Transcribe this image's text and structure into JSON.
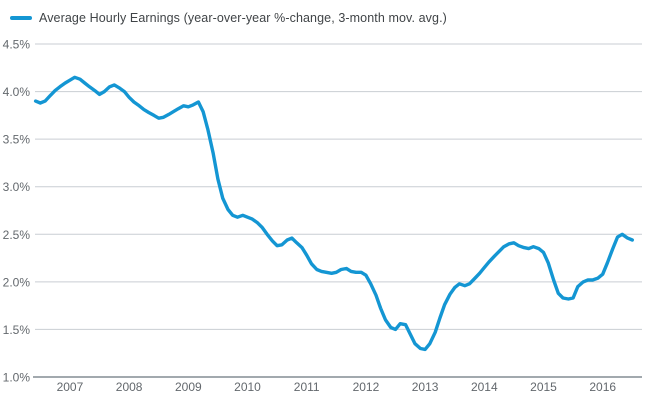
{
  "legend": {
    "label": "Average Hourly Earnings (year-over-year %-change, 3-month mov. avg.)"
  },
  "colors": {
    "line": "#1496d3",
    "grid": "#c9ced3",
    "axis": "#a2a9ae",
    "tick_text": "#63686d",
    "legend_text": "#404447",
    "background": "#ffffff"
  },
  "chart_data": {
    "type": "line",
    "title": "Average Hourly Earnings (year-over-year %-change, 3-month mov. avg.)",
    "xlabel": "",
    "ylabel": "",
    "grid": "horizontal-only",
    "legend_position": "top-left",
    "x_tick_labels": [
      "2007",
      "2008",
      "2009",
      "2010",
      "2011",
      "2012",
      "2013",
      "2014",
      "2015",
      "2016"
    ],
    "x_tick_values": [
      2007,
      2008,
      2009,
      2010,
      2011,
      2012,
      2013,
      2014,
      2015,
      2016
    ],
    "y_tick_labels": [
      "4.5%",
      "4.0%",
      "3.5%",
      "3.0%",
      "2.5%",
      "2.0%",
      "1.5%",
      "1.0%"
    ],
    "y_tick_values": [
      4.5,
      4.0,
      3.5,
      3.0,
      2.5,
      2.0,
      1.5,
      1.0
    ],
    "x_range": [
      2006.41,
      2016.63
    ],
    "y_range": [
      1.0,
      4.5
    ],
    "series": [
      {
        "name": "Average Hourly Earnings (year-over-year %-change, 3-month mov. avg.)",
        "units": "percent",
        "points": [
          [
            2006.42,
            3.9
          ],
          [
            2006.5,
            3.88
          ],
          [
            2006.58,
            3.9
          ],
          [
            2006.67,
            3.96
          ],
          [
            2006.75,
            4.01
          ],
          [
            2006.83,
            4.05
          ],
          [
            2006.92,
            4.09
          ],
          [
            2007.0,
            4.12
          ],
          [
            2007.08,
            4.15
          ],
          [
            2007.17,
            4.13
          ],
          [
            2007.25,
            4.09
          ],
          [
            2007.33,
            4.05
          ],
          [
            2007.42,
            4.01
          ],
          [
            2007.5,
            3.97
          ],
          [
            2007.58,
            4.0
          ],
          [
            2007.67,
            4.05
          ],
          [
            2007.75,
            4.07
          ],
          [
            2007.83,
            4.04
          ],
          [
            2007.92,
            4.0
          ],
          [
            2008.0,
            3.94
          ],
          [
            2008.08,
            3.89
          ],
          [
            2008.17,
            3.85
          ],
          [
            2008.25,
            3.81
          ],
          [
            2008.33,
            3.78
          ],
          [
            2008.42,
            3.75
          ],
          [
            2008.5,
            3.72
          ],
          [
            2008.58,
            3.73
          ],
          [
            2008.67,
            3.76
          ],
          [
            2008.75,
            3.79
          ],
          [
            2008.83,
            3.82
          ],
          [
            2008.92,
            3.85
          ],
          [
            2009.0,
            3.84
          ],
          [
            2009.08,
            3.86
          ],
          [
            2009.17,
            3.89
          ],
          [
            2009.25,
            3.79
          ],
          [
            2009.33,
            3.6
          ],
          [
            2009.42,
            3.35
          ],
          [
            2009.5,
            3.08
          ],
          [
            2009.58,
            2.88
          ],
          [
            2009.67,
            2.76
          ],
          [
            2009.75,
            2.7
          ],
          [
            2009.83,
            2.68
          ],
          [
            2009.92,
            2.7
          ],
          [
            2010.0,
            2.68
          ],
          [
            2010.08,
            2.66
          ],
          [
            2010.17,
            2.62
          ],
          [
            2010.25,
            2.57
          ],
          [
            2010.33,
            2.5
          ],
          [
            2010.42,
            2.43
          ],
          [
            2010.5,
            2.38
          ],
          [
            2010.58,
            2.39
          ],
          [
            2010.67,
            2.44
          ],
          [
            2010.75,
            2.46
          ],
          [
            2010.83,
            2.41
          ],
          [
            2010.92,
            2.36
          ],
          [
            2011.0,
            2.28
          ],
          [
            2011.08,
            2.19
          ],
          [
            2011.17,
            2.13
          ],
          [
            2011.25,
            2.11
          ],
          [
            2011.33,
            2.1
          ],
          [
            2011.42,
            2.09
          ],
          [
            2011.5,
            2.1
          ],
          [
            2011.58,
            2.13
          ],
          [
            2011.67,
            2.14
          ],
          [
            2011.75,
            2.11
          ],
          [
            2011.83,
            2.1
          ],
          [
            2011.92,
            2.1
          ],
          [
            2012.0,
            2.07
          ],
          [
            2012.08,
            1.98
          ],
          [
            2012.17,
            1.86
          ],
          [
            2012.25,
            1.72
          ],
          [
            2012.33,
            1.6
          ],
          [
            2012.42,
            1.52
          ],
          [
            2012.5,
            1.5
          ],
          [
            2012.58,
            1.56
          ],
          [
            2012.67,
            1.55
          ],
          [
            2012.75,
            1.45
          ],
          [
            2012.83,
            1.35
          ],
          [
            2012.92,
            1.3
          ],
          [
            2013.0,
            1.29
          ],
          [
            2013.08,
            1.35
          ],
          [
            2013.17,
            1.47
          ],
          [
            2013.25,
            1.62
          ],
          [
            2013.33,
            1.76
          ],
          [
            2013.42,
            1.87
          ],
          [
            2013.5,
            1.94
          ],
          [
            2013.58,
            1.98
          ],
          [
            2013.67,
            1.96
          ],
          [
            2013.75,
            1.98
          ],
          [
            2013.83,
            2.03
          ],
          [
            2013.92,
            2.09
          ],
          [
            2014.0,
            2.15
          ],
          [
            2014.08,
            2.21
          ],
          [
            2014.17,
            2.27
          ],
          [
            2014.25,
            2.32
          ],
          [
            2014.33,
            2.37
          ],
          [
            2014.42,
            2.4
          ],
          [
            2014.5,
            2.41
          ],
          [
            2014.58,
            2.38
          ],
          [
            2014.67,
            2.36
          ],
          [
            2014.75,
            2.35
          ],
          [
            2014.83,
            2.37
          ],
          [
            2014.92,
            2.35
          ],
          [
            2015.0,
            2.31
          ],
          [
            2015.08,
            2.2
          ],
          [
            2015.17,
            2.02
          ],
          [
            2015.25,
            1.88
          ],
          [
            2015.33,
            1.83
          ],
          [
            2015.42,
            1.82
          ],
          [
            2015.5,
            1.83
          ],
          [
            2015.58,
            1.95
          ],
          [
            2015.67,
            2.0
          ],
          [
            2015.75,
            2.02
          ],
          [
            2015.83,
            2.02
          ],
          [
            2015.92,
            2.04
          ],
          [
            2016.0,
            2.08
          ],
          [
            2016.08,
            2.2
          ],
          [
            2016.17,
            2.35
          ],
          [
            2016.25,
            2.47
          ],
          [
            2016.33,
            2.5
          ],
          [
            2016.42,
            2.46
          ],
          [
            2016.5,
            2.44
          ]
        ]
      }
    ]
  }
}
